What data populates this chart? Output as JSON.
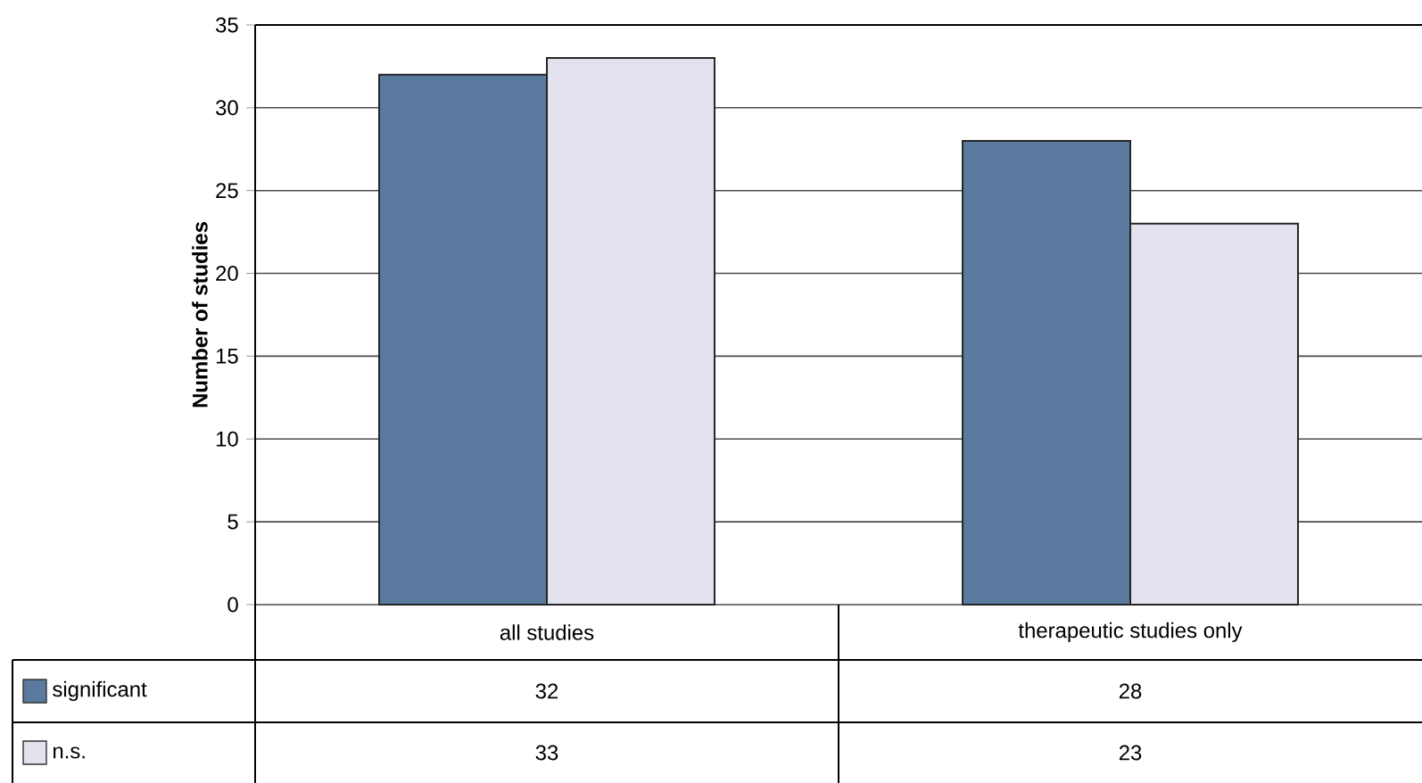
{
  "chart_data": {
    "type": "bar",
    "ylabel": "Number of studies",
    "categories": [
      "all studies",
      "therapeutic studies only"
    ],
    "series": [
      {
        "name": "significant",
        "color": "#5a7a9f",
        "values": [
          32,
          28
        ]
      },
      {
        "name": "n.s.",
        "color": "#e2e2ee",
        "values": [
          33,
          23
        ]
      }
    ],
    "ylim": [
      0,
      35
    ],
    "yticks": [
      0,
      5,
      10,
      15,
      20,
      25,
      30,
      35
    ],
    "grid": "y",
    "data_labels": true,
    "legend": "bottom left"
  }
}
